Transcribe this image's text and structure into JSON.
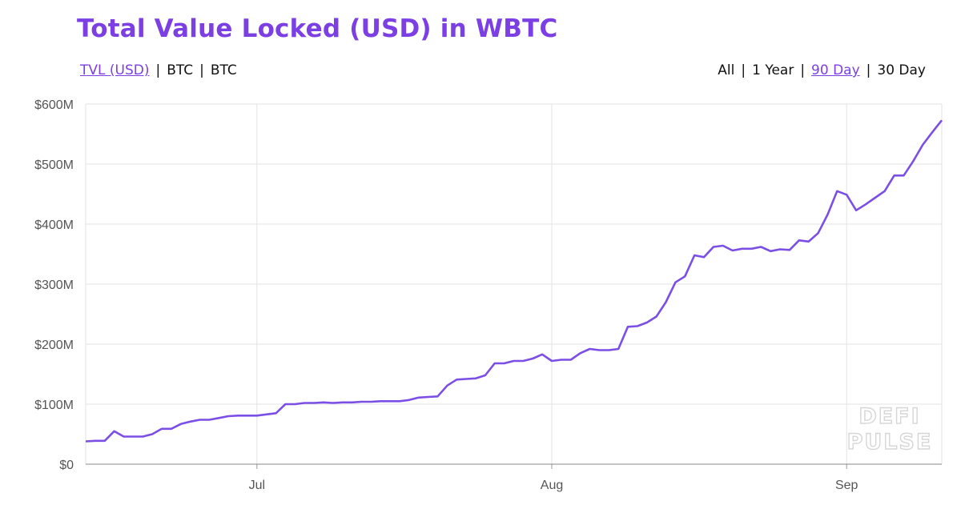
{
  "title": "Total Value Locked (USD) in WBTC",
  "unit_tabs": [
    {
      "label": "TVL (USD)",
      "active": true
    },
    {
      "label": "BTC",
      "active": false
    },
    {
      "label": "BTC",
      "active": false
    }
  ],
  "range_tabs": [
    {
      "label": "All",
      "active": false
    },
    {
      "label": "1 Year",
      "active": false
    },
    {
      "label": "90 Day",
      "active": true
    },
    {
      "label": "30 Day",
      "active": false
    }
  ],
  "watermark": [
    "DEFI",
    "PULSE"
  ],
  "colors": {
    "accent": "#7b3fe4",
    "line": "#7b4fe6",
    "grid": "#e3e3e3"
  },
  "chart_data": {
    "type": "line",
    "title": "Total Value Locked (USD) in WBTC",
    "xlabel": "",
    "ylabel": "",
    "x_range": [
      "2019-06-13",
      "2019-09-11"
    ],
    "x_ticks": [
      {
        "date": "2019-07-01",
        "label": "Jul"
      },
      {
        "date": "2019-08-01",
        "label": "Aug"
      },
      {
        "date": "2019-09-01",
        "label": "Sep"
      }
    ],
    "ylim": [
      0,
      600
    ],
    "y_ticks": [
      0,
      100,
      200,
      300,
      400,
      500,
      600
    ],
    "y_tick_labels": [
      "$0",
      "$100M",
      "$200M",
      "$300M",
      "$400M",
      "$500M",
      "$600M"
    ],
    "grid": true,
    "legend": "none",
    "series": [
      {
        "x": [
          "2019-06-13",
          "2019-06-14",
          "2019-06-15",
          "2019-06-16",
          "2019-06-17",
          "2019-06-18",
          "2019-06-19",
          "2019-06-20",
          "2019-06-21",
          "2019-06-22",
          "2019-06-23",
          "2019-06-24",
          "2019-06-25",
          "2019-06-26",
          "2019-06-27",
          "2019-06-28",
          "2019-06-29",
          "2019-06-30",
          "2019-07-01",
          "2019-07-02",
          "2019-07-03",
          "2019-07-04",
          "2019-07-05",
          "2019-07-06",
          "2019-07-07",
          "2019-07-08",
          "2019-07-09",
          "2019-07-10",
          "2019-07-11",
          "2019-07-12",
          "2019-07-13",
          "2019-07-14",
          "2019-07-15",
          "2019-07-16",
          "2019-07-17",
          "2019-07-18",
          "2019-07-19",
          "2019-07-20",
          "2019-07-21",
          "2019-07-22",
          "2019-07-23",
          "2019-07-24",
          "2019-07-25",
          "2019-07-26",
          "2019-07-27",
          "2019-07-28",
          "2019-07-29",
          "2019-07-30",
          "2019-07-31",
          "2019-08-01",
          "2019-08-02",
          "2019-08-03",
          "2019-08-04",
          "2019-08-05",
          "2019-08-06",
          "2019-08-07",
          "2019-08-08",
          "2019-08-09",
          "2019-08-10",
          "2019-08-11",
          "2019-08-12",
          "2019-08-13",
          "2019-08-14",
          "2019-08-15",
          "2019-08-16",
          "2019-08-17",
          "2019-08-18",
          "2019-08-19",
          "2019-08-20",
          "2019-08-21",
          "2019-08-22",
          "2019-08-23",
          "2019-08-24",
          "2019-08-25",
          "2019-08-26",
          "2019-08-27",
          "2019-08-28",
          "2019-08-29",
          "2019-08-30",
          "2019-08-31",
          "2019-09-01",
          "2019-09-02",
          "2019-09-03",
          "2019-09-04",
          "2019-09-05",
          "2019-09-06",
          "2019-09-07",
          "2019-09-08",
          "2019-09-09",
          "2019-09-10",
          "2019-09-11"
        ],
        "y": [
          38,
          39,
          39,
          55,
          46,
          46,
          46,
          50,
          59,
          59,
          67,
          71,
          74,
          74,
          77,
          80,
          81,
          81,
          81,
          83,
          85,
          100,
          100,
          102,
          102,
          103,
          102,
          103,
          103,
          104,
          104,
          105,
          105,
          105,
          107,
          111,
          112,
          113,
          131,
          141,
          142,
          143,
          148,
          168,
          168,
          172,
          172,
          176,
          183,
          172,
          174,
          174,
          185,
          192,
          190,
          190,
          192,
          229,
          230,
          236,
          246,
          270,
          303,
          313,
          348,
          345,
          362,
          364,
          356,
          359,
          359,
          362,
          355,
          358,
          357,
          373,
          371,
          385,
          416,
          455,
          449,
          423,
          433,
          444,
          455,
          481,
          481,
          505,
          532,
          553,
          573
        ]
      }
    ]
  }
}
